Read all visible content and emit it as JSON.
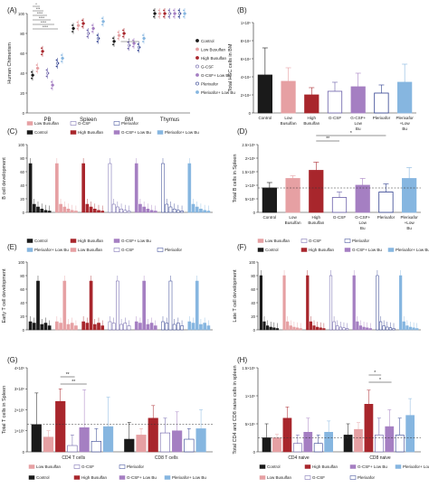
{
  "colors": {
    "control": "#1a1a1a",
    "low_busulfan": "#e6a0a3",
    "high_busulfan": "#a8262c",
    "gcsf": "#d9d9ea",
    "gcsf_edge": "#6a5fa8",
    "gcsf_low_bu": "#a57fc2",
    "plerixafor": "#2f3f8f",
    "plerixafor_low_bu": "#86b6e0"
  },
  "chart_data": [
    {
      "id": "A",
      "type": "scatter",
      "panel_label": "(A)",
      "ylabel": "Human Chimerism",
      "ylim": [
        0,
        100
      ],
      "yticks": [
        "0",
        "20",
        "40",
        "60",
        "80",
        "100"
      ],
      "categories": [
        "PB",
        "Spleen",
        "BM",
        "Thymus"
      ],
      "legend": [
        "Control",
        "Low Busulfan",
        "High Busulfan",
        "G-CSF",
        "G-CSF+ Low Bu",
        "Plerixafor",
        "Plerixafor+ Low Bu"
      ],
      "series_keys": [
        "control",
        "low_busulfan",
        "high_busulfan",
        "gcsf",
        "gcsf_low_bu",
        "plerixafor",
        "plerixafor_low_bu"
      ],
      "means": [
        [
          38,
          45,
          62,
          40,
          28,
          50,
          55
        ],
        [
          85,
          88,
          90,
          80,
          85,
          75,
          92
        ],
        [
          72,
          78,
          80,
          68,
          70,
          66,
          75
        ],
        [
          100,
          100,
          100,
          100,
          100,
          100,
          100
        ]
      ],
      "significance": [
        "*",
        "***",
        "****",
        "****",
        "****",
        "****",
        "****",
        "***",
        "****",
        "*"
      ]
    },
    {
      "id": "B",
      "type": "bar",
      "panel_label": "(B)",
      "ylabel": "Total HSC cells in BM",
      "ytick_labels": [
        "0",
        "2×10⁴",
        "4×10⁴",
        "6×10⁴",
        "8×10⁴",
        "1×10⁵"
      ],
      "ylim": [
        0,
        100000
      ],
      "categories": [
        "Control",
        "Low Busulfan",
        "High Busulfan",
        "G-CSF",
        "G-CSF+ Low Bu",
        "Plerixafor",
        "Plerixafor +Low Bu"
      ],
      "series_keys": [
        "control",
        "low_busulfan",
        "high_busulfan",
        "gcsf",
        "gcsf_low_bu",
        "plerixafor",
        "plerixafor_low_bu"
      ],
      "values": [
        42000,
        35000,
        20000,
        24000,
        29000,
        22000,
        34000
      ],
      "errors": [
        30000,
        15000,
        8000,
        10000,
        15000,
        9000,
        20000
      ]
    },
    {
      "id": "C",
      "type": "bar",
      "panel_label": "(C)",
      "ylabel": "B cell development",
      "ytick_labels": [
        "0",
        "20",
        "40",
        "60",
        "80",
        "100"
      ],
      "ylim": [
        0,
        100
      ],
      "legend": [
        "Low Busulfan",
        "G-CSF",
        "Plerixafor",
        "Control",
        "High Busulfan",
        "G-CSF+ Low Bu",
        "Plerixafor+ Low Bu"
      ],
      "group_keys": [
        "control",
        "low_busulfan",
        "high_busulfan",
        "gcsf",
        "gcsf_low_bu",
        "plerixafor",
        "plerixafor_low_bu"
      ],
      "bars_per_group": [
        72,
        12,
        8,
        5,
        3,
        2
      ]
    },
    {
      "id": "D",
      "type": "bar",
      "panel_label": "(D)",
      "ylabel": "Total B cells in Spleen",
      "ytick_labels": [
        "0",
        "5×10⁵",
        "1×10⁶",
        "1.5×10⁶",
        "2×10⁶",
        "2.5×10⁶"
      ],
      "ylim": [
        0,
        2500000
      ],
      "categories": [
        "Control",
        "Low Busulfan",
        "High Busulfan",
        "G-CSF",
        "G-CSF+ Low Bu",
        "Plerixafor",
        "Plerixafor +Low Bu"
      ],
      "series_keys": [
        "control",
        "low_busulfan",
        "high_busulfan",
        "gcsf",
        "gcsf_low_bu",
        "plerixafor",
        "plerixafor_low_bu"
      ],
      "values": [
        900000,
        1250000,
        1550000,
        550000,
        1000000,
        750000,
        1250000
      ],
      "errors": [
        200000,
        100000,
        300000,
        200000,
        250000,
        300000,
        400000
      ],
      "reference_line": 900000,
      "significance": [
        "**",
        "*"
      ]
    },
    {
      "id": "E",
      "type": "bar",
      "panel_label": "(E)",
      "ylabel": "Early T cell development",
      "ytick_labels": [
        "0",
        "20",
        "40",
        "60",
        "80",
        "100"
      ],
      "ylim": [
        0,
        100
      ],
      "legend": [
        "Control",
        "High Busulfan",
        "G-CSF+ Low Bu",
        "Plerixafor+ Low Bu",
        "Low Busulfan",
        "G-CSF",
        "Plerixafor"
      ],
      "group_keys": [
        "control",
        "low_busulfan",
        "high_busulfan",
        "gcsf",
        "gcsf_low_bu",
        "plerixafor",
        "plerixafor_low_bu"
      ],
      "bars_per_group": [
        12,
        10,
        72,
        8,
        10,
        6
      ]
    },
    {
      "id": "F",
      "type": "bar",
      "panel_label": "(F)",
      "ylabel": "Late T cell development",
      "ytick_labels": [
        "0",
        "20",
        "40",
        "60",
        "80",
        "100"
      ],
      "ylim": [
        0,
        100
      ],
      "legend": [
        "Low Busulfan",
        "G-CSF",
        "Plerixafor",
        "Control",
        "High Busulfan",
        "G-CSF+ Low Bu",
        "Plerixafor+ Low Bu"
      ],
      "group_keys": [
        "control",
        "low_busulfan",
        "high_busulfan",
        "gcsf",
        "gcsf_low_bu",
        "plerixafor",
        "plerixafor_low_bu"
      ],
      "bars_per_group": [
        80,
        12,
        6,
        4,
        3,
        2
      ]
    },
    {
      "id": "G",
      "type": "bar",
      "panel_label": "(G)",
      "ylabel": "Total T cells in Spleen",
      "ytick_labels": [
        "0",
        "1×10⁶",
        "2×10⁶",
        "3×10⁶",
        "4×10⁶"
      ],
      "ylim": [
        0,
        4000000
      ],
      "categories": [
        "CD4 T cells",
        "CD8 T cells"
      ],
      "series_keys": [
        "control",
        "low_busulfan",
        "high_busulfan",
        "gcsf",
        "gcsf_low_bu",
        "plerixafor",
        "plerixafor_low_bu"
      ],
      "values": [
        [
          1300000,
          700000,
          2400000,
          300000,
          1150000,
          500000,
          1200000
        ],
        [
          600000,
          800000,
          1600000,
          900000,
          1000000,
          600000,
          1100000
        ]
      ],
      "errors": [
        [
          1500000,
          300000,
          600000,
          500000,
          1800000,
          600000,
          1400000
        ],
        [
          800000,
          300000,
          600000,
          700000,
          900000,
          500000,
          900000
        ]
      ],
      "reference_line": 1300000,
      "significance": [
        "**",
        "**"
      ],
      "legend": [
        "Low Busulfan",
        "G-CSF",
        "Plerixafor",
        "Control",
        "High Busulfan",
        "G-CSF+ Low Bu",
        "Plerixafor+ Low Bu"
      ]
    },
    {
      "id": "H",
      "type": "bar",
      "panel_label": "(H)",
      "ylabel": "Total CD4 and CD8 naive cells in spleen",
      "ytick_labels": [
        "0",
        "5×10⁵",
        "1×10⁶",
        "1.5×10⁶"
      ],
      "ylim": [
        0,
        1500000
      ],
      "categories": [
        "CD4 naive",
        "CD8 naive"
      ],
      "series_keys": [
        "control",
        "low_busulfan",
        "high_busulfan",
        "gcsf",
        "gcsf_low_bu",
        "plerixafor",
        "plerixafor_low_bu"
      ],
      "values": [
        [
          250000,
          250000,
          600000,
          150000,
          350000,
          150000,
          350000
        ],
        [
          300000,
          400000,
          850000,
          300000,
          450000,
          300000,
          650000
        ]
      ],
      "errors": [
        [
          250000,
          60000,
          200000,
          150000,
          250000,
          150000,
          200000
        ],
        [
          200000,
          120000,
          250000,
          300000,
          300000,
          300000,
          300000
        ]
      ],
      "reference_line": 250000,
      "significance": [
        "*",
        "*"
      ],
      "legend": [
        "Control",
        "High Busulfan",
        "G-CSF+ Low Bu",
        "Plerixafor+ Low Bu",
        "Low Busulfan",
        "G-CSF",
        "Plerixafor"
      ]
    }
  ]
}
